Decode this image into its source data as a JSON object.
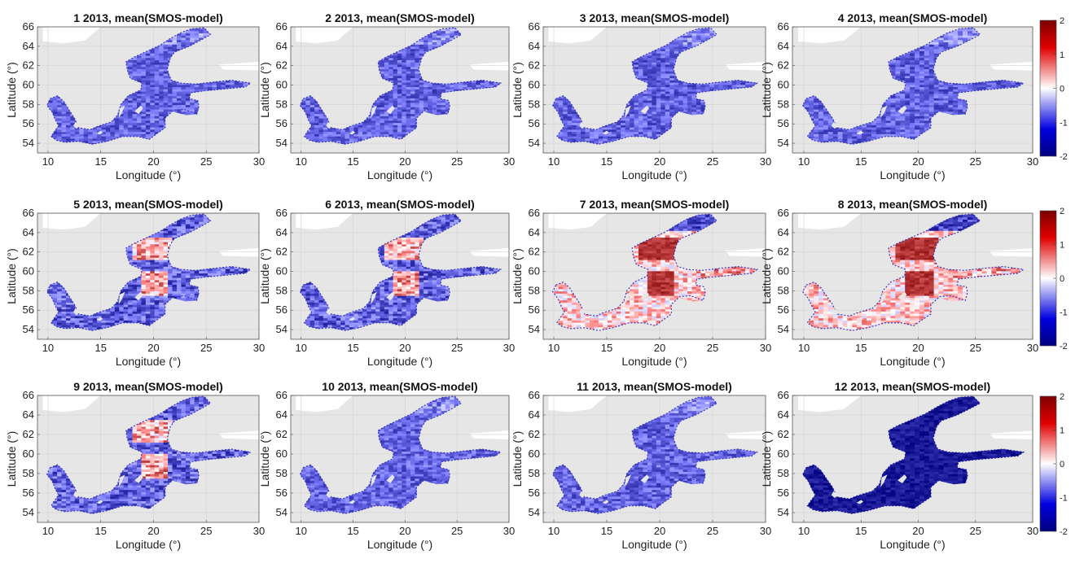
{
  "figure": {
    "colorbar": {
      "ticks": [
        "2",
        "1",
        "0",
        "-1",
        "-2"
      ],
      "colors": {
        "high": "#7d0000",
        "mid": "#ffffff",
        "low": "#00007d"
      }
    },
    "panels": [
      {
        "title": "1 2013, mean(SMOS-model)",
        "regime": "bluedom"
      },
      {
        "title": "2 2013, mean(SMOS-model)",
        "regime": "bluedom"
      },
      {
        "title": "3 2013, mean(SMOS-model)",
        "regime": "bluedom"
      },
      {
        "title": "4 2013, mean(SMOS-model)",
        "regime": "bluedom"
      },
      {
        "title": "5 2013, mean(SMOS-model)",
        "regime": "mixed"
      },
      {
        "title": "6 2013, mean(SMOS-model)",
        "regime": "mixed"
      },
      {
        "title": "7 2013, mean(SMOS-model)",
        "regime": "reddom"
      },
      {
        "title": "8 2013, mean(SMOS-model)",
        "regime": "reddom"
      },
      {
        "title": "9 2013, mean(SMOS-model)",
        "regime": "mixed"
      },
      {
        "title": "10 2013, mean(SMOS-model)",
        "regime": "bluedom"
      },
      {
        "title": "11 2013, mean(SMOS-model)",
        "regime": "bluedom"
      },
      {
        "title": "12 2013, mean(SMOS-model)",
        "regime": "deepblue"
      }
    ]
  },
  "chart_data": {
    "type": "heatmap",
    "grid": true,
    "xlabel": "Longitude (°)",
    "ylabel": "Latitude (°)",
    "xlim": [
      9,
      30
    ],
    "ylim": [
      53,
      66
    ],
    "xticks": [
      10,
      15,
      20,
      25,
      30
    ],
    "yticks": [
      54,
      56,
      58,
      60,
      62,
      64,
      66
    ],
    "colorbar_range": [
      -2,
      2
    ],
    "colorbar_ticks": [
      2,
      1,
      0,
      -1,
      -2
    ]
  }
}
